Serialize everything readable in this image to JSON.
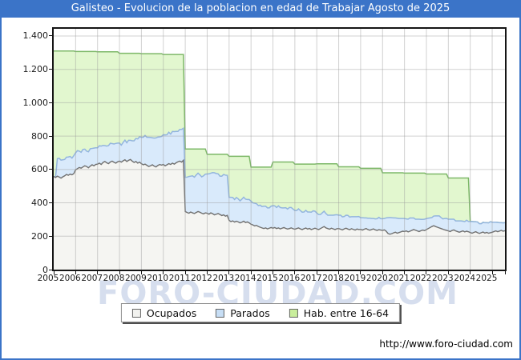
{
  "title": "Galisteo - Evolucion de la poblacion en edad de Trabajar Agosto de 2025",
  "watermark": "FORO-CIUDAD.COM",
  "footer_url": "http://www.foro-ciudad.com",
  "colors": {
    "frame_blue": "#3b74c8",
    "grid": "#c9c9c9",
    "plot_border": "#151515",
    "ocupados_fill": "#f5f5f2",
    "ocupados_stroke": "#707070",
    "parados_fill": "#d9eafb",
    "parados_stroke": "#93b5de",
    "hab_fill": "#e2f7cf",
    "hab_stroke": "#7db868"
  },
  "legend": [
    {
      "label": "Ocupados",
      "swatch": "#f2f2ef"
    },
    {
      "label": "Parados",
      "swatch": "#c7def5"
    },
    {
      "label": "Hab. entre 16-64",
      "swatch": "#c9ee9c"
    }
  ],
  "chart_data": {
    "type": "area",
    "title": "Galisteo - Evolucion de la poblacion en edad de Trabajar Agosto de 2025",
    "x_start": "2005-01",
    "x_end": "2025-08",
    "x_tick_labels": [
      "2005",
      "2006",
      "2007",
      "2008",
      "2009",
      "2010",
      "2011",
      "2012",
      "2013",
      "2014",
      "2015",
      "2016",
      "2017",
      "2018",
      "2019",
      "2020",
      "2021",
      "2022",
      "2023",
      "2024",
      "2025"
    ],
    "y_ticks": [
      0,
      200,
      400,
      600,
      800,
      1000,
      1200,
      1400
    ],
    "y_tick_labels": [
      "0",
      "200",
      "400",
      "600",
      "800",
      "1.000",
      "1.200",
      "1.400"
    ],
    "ylim": [
      0,
      1443
    ],
    "grid": true,
    "legend_position": "bottom",
    "stacking": "Parados values are monthly counts stacked on top of Ocupados; Hab. entre 16-64 values are absolute totals drawn behind both.",
    "series": [
      {
        "name": "Ocupados",
        "monthly_values": [
          558,
          552,
          560,
          555,
          548,
          556,
          562,
          570,
          565,
          572,
          568,
          575,
          598,
          605,
          612,
          608,
          615,
          622,
          618,
          610,
          620,
          628,
          622,
          630,
          632,
          638,
          630,
          642,
          648,
          640,
          635,
          645,
          650,
          643,
          638,
          646,
          650,
          644,
          652,
          658,
          648,
          655,
          660,
          650,
          642,
          648,
          638,
          644,
          635,
          628,
          632,
          625,
          618,
          622,
          628,
          620,
          615,
          624,
          630,
          626,
          630,
          622,
          628,
          635,
          630,
          638,
          632,
          640,
          646,
          650,
          644,
          655,
          348,
          342,
          338,
          345,
          340,
          336,
          342,
          348,
          344,
          338,
          334,
          340,
          338,
          332,
          340,
          335,
          328,
          332,
          336,
          330,
          324,
          328,
          320,
          325,
          295,
          288,
          292,
          285,
          290,
          286,
          280,
          284,
          290,
          282,
          286,
          280,
          272,
          268,
          262,
          265,
          258,
          254,
          250,
          246,
          250,
          244,
          248,
          252,
          248,
          252,
          246,
          250,
          244,
          248,
          252,
          247,
          243,
          246,
          250,
          245,
          242,
          246,
          250,
          244,
          240,
          245,
          249,
          243,
          247,
          240,
          244,
          248,
          244,
          240,
          246,
          252,
          258,
          250,
          246,
          242,
          248,
          244,
          240,
          245,
          246,
          242,
          238,
          244,
          248,
          243,
          239,
          245,
          241,
          237,
          243,
          240,
          241,
          237,
          242,
          246,
          240,
          236,
          240,
          244,
          238,
          235,
          239,
          237,
          235,
          238,
          230,
          216,
          212,
          215,
          220,
          224,
          218,
          222,
          226,
          230,
          228,
          232,
          226,
          230,
          235,
          240,
          236,
          232,
          228,
          233,
          237,
          234,
          240,
          246,
          252,
          258,
          263,
          258,
          254,
          250,
          246,
          242,
          238,
          235,
          232,
          228,
          234,
          238,
          232,
          228,
          224,
          228,
          232,
          226,
          230,
          227,
          222,
          218,
          223,
          227,
          221,
          217,
          221,
          225,
          219,
          223,
          218,
          221,
          224,
          228,
          232,
          227,
          231,
          235,
          230,
          233
        ]
      },
      {
        "name": "Parados",
        "monthly_values": [
          0,
          0,
          105,
          112,
          108,
          102,
          98,
          104,
          110,
          106,
          100,
          108,
          102,
          108,
          98,
          95,
          105,
          100,
          92,
          96,
          104,
          98,
          106,
          100,
          98,
          104,
          110,
          102,
          95,
          100,
          108,
          112,
          105,
          110,
          118,
          112,
          108,
          102,
          110,
          118,
          112,
          120,
          115,
          122,
          130,
          138,
          145,
          152,
          158,
          165,
          172,
          168,
          175,
          170,
          162,
          168,
          174,
          170,
          165,
          172,
          178,
          185,
          180,
          188,
          182,
          190,
          195,
          188,
          182,
          190,
          196,
          192,
          205,
          212,
          220,
          215,
          222,
          218,
          225,
          230,
          224,
          218,
          228,
          232,
          235,
          242,
          238,
          246,
          252,
          244,
          238,
          230,
          236,
          242,
          246,
          240,
          138,
          145,
          140,
          135,
          142,
          138,
          132,
          138,
          144,
          140,
          134,
          140,
          138,
          132,
          136,
          130,
          126,
          132,
          128,
          134,
          130,
          126,
          122,
          128,
          135,
          130,
          126,
          132,
          128,
          122,
          118,
          124,
          120,
          126,
          122,
          118,
          112,
          108,
          114,
          110,
          104,
          100,
          106,
          102,
          98,
          104,
          108,
          102,
          95,
          90,
          84,
          88,
          92,
          86,
          80,
          84,
          78,
          82,
          88,
          84,
          80,
          84,
          78,
          74,
          78,
          82,
          76,
          72,
          76,
          80,
          74,
          78,
          70,
          74,
          68,
          64,
          68,
          72,
          66,
          62,
          66,
          70,
          74,
          68,
          70,
          68,
          80,
          95,
          100,
          96,
          90,
          86,
          90,
          84,
          80,
          76,
          78,
          72,
          76,
          80,
          74,
          70,
          66,
          70,
          74,
          68,
          64,
          68,
          66,
          62,
          58,
          54,
          58,
          64,
          68,
          72,
          66,
          62,
          68,
          72,
          70,
          74,
          68,
          64,
          60,
          64,
          68,
          64,
          58,
          62,
          66,
          62,
          66,
          70,
          64,
          60,
          64,
          58,
          54,
          58,
          62,
          58,
          62,
          66,
          60,
          56,
          52,
          56,
          50,
          46,
          50,
          48
        ]
      },
      {
        "name": "Hab. entre 16-64",
        "monthly_values": [
          1310,
          1310,
          1310,
          1310,
          1310,
          1310,
          1310,
          1310,
          1310,
          1310,
          1310,
          1310,
          1307,
          1307,
          1307,
          1307,
          1307,
          1307,
          1307,
          1307,
          1307,
          1307,
          1307,
          1307,
          1305,
          1305,
          1305,
          1305,
          1305,
          1305,
          1305,
          1305,
          1305,
          1305,
          1305,
          1305,
          1296,
          1296,
          1296,
          1296,
          1296,
          1296,
          1296,
          1296,
          1296,
          1296,
          1296,
          1296,
          1294,
          1294,
          1294,
          1294,
          1294,
          1294,
          1294,
          1294,
          1294,
          1294,
          1294,
          1294,
          1289,
          1289,
          1289,
          1289,
          1289,
          1289,
          1289,
          1289,
          1289,
          1289,
          1289,
          1289,
          723,
          723,
          723,
          723,
          723,
          723,
          723,
          723,
          723,
          723,
          723,
          723,
          691,
          691,
          691,
          691,
          691,
          691,
          691,
          691,
          691,
          691,
          691,
          691,
          679,
          679,
          679,
          679,
          679,
          679,
          679,
          679,
          679,
          679,
          679,
          679,
          614,
          614,
          614,
          614,
          614,
          614,
          614,
          614,
          614,
          614,
          614,
          614,
          645,
          645,
          645,
          645,
          645,
          645,
          645,
          645,
          645,
          645,
          645,
          645,
          632,
          632,
          632,
          632,
          632,
          632,
          632,
          632,
          632,
          632,
          632,
          632,
          634,
          634,
          634,
          634,
          634,
          634,
          634,
          634,
          634,
          634,
          634,
          634,
          616,
          616,
          616,
          616,
          616,
          616,
          616,
          616,
          616,
          616,
          616,
          616,
          607,
          607,
          607,
          607,
          607,
          607,
          607,
          607,
          607,
          607,
          607,
          607,
          580,
          580,
          580,
          580,
          580,
          580,
          580,
          580,
          580,
          580,
          580,
          580,
          578,
          578,
          578,
          578,
          578,
          578,
          578,
          578,
          578,
          578,
          578,
          578,
          573,
          573,
          573,
          573,
          573,
          573,
          573,
          573,
          573,
          573,
          573,
          573,
          549,
          549,
          549,
          549,
          549,
          549,
          549,
          549,
          549,
          549,
          549,
          549,
          288,
          288,
          287,
          287,
          285,
          275,
          275,
          283,
          281,
          281,
          280,
          287,
          284,
          284,
          284,
          283,
          281,
          281,
          280,
          281
        ]
      }
    ]
  }
}
